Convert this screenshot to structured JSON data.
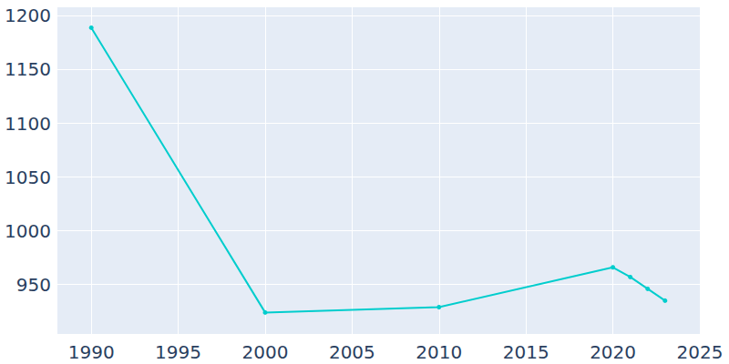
{
  "chart_data": {
    "type": "line",
    "x": [
      1990,
      2000,
      2010,
      2020,
      2021,
      2022,
      2023
    ],
    "values": [
      1189,
      924,
      929,
      966,
      957,
      946,
      935
    ],
    "color": "#00cdcd",
    "marker": "circle",
    "xlim": [
      1988,
      2025
    ],
    "xticks": [
      1990,
      1995,
      2000,
      2005,
      2010,
      2015,
      2020,
      2025
    ],
    "ylim": [
      904,
      1208
    ],
    "yticks": [
      950,
      1000,
      1050,
      1100,
      1150,
      1200
    ],
    "grid": true
  }
}
